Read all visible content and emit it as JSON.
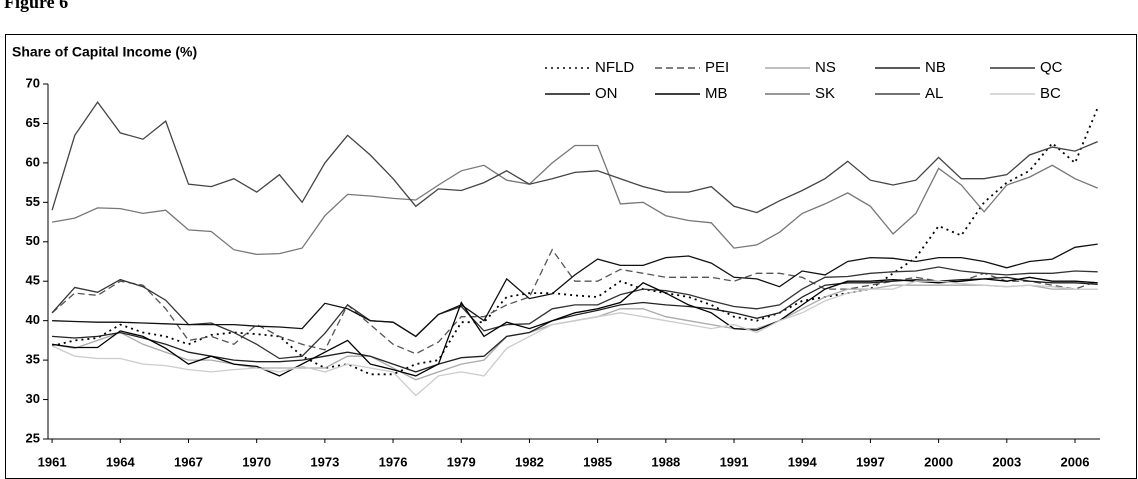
{
  "chart_data": {
    "type": "line",
    "title": "Figure 6",
    "y_label": "Share of Capital Income (%)",
    "x": [
      1961,
      1962,
      1963,
      1964,
      1965,
      1966,
      1967,
      1968,
      1969,
      1970,
      1971,
      1972,
      1973,
      1974,
      1975,
      1976,
      1977,
      1978,
      1979,
      1980,
      1981,
      1982,
      1983,
      1984,
      1985,
      1986,
      1987,
      1988,
      1989,
      1990,
      1991,
      1992,
      1993,
      1994,
      1995,
      1996,
      1997,
      1998,
      1999,
      2000,
      2001,
      2002,
      2003,
      2004,
      2005,
      2006,
      2007
    ],
    "xlim": [
      1960.82,
      2007.1
    ],
    "xticks": [
      1961,
      1964,
      1967,
      1970,
      1973,
      1976,
      1979,
      1982,
      1985,
      1988,
      1991,
      1994,
      1997,
      2000,
      2003,
      2006
    ],
    "ylim": [
      25,
      70
    ],
    "yticks": [
      25,
      30,
      35,
      40,
      45,
      50,
      55,
      60,
      65,
      70
    ],
    "grid": false,
    "legend": "top-right",
    "series": [
      {
        "name": "NFLD",
        "color": "#000000",
        "dash": "dotted",
        "values": [
          36.8,
          37.5,
          37.8,
          39.5,
          38.5,
          38,
          37,
          38.2,
          38.5,
          38.3,
          38,
          35.5,
          34,
          34.5,
          33.2,
          33.2,
          34.5,
          35,
          39.8,
          39.8,
          43,
          43.5,
          43.5,
          43.2,
          43,
          45,
          44,
          43.5,
          43,
          42,
          40.5,
          40,
          41,
          42.5,
          43,
          43.5,
          44,
          46,
          48,
          52,
          50.8,
          55,
          57.5,
          59,
          62.5,
          60,
          67
        ]
      },
      {
        "name": "PEI",
        "color": "#555555",
        "dash": "dashed",
        "values": [
          41,
          43.5,
          43.2,
          45,
          44.5,
          41.5,
          37.5,
          38,
          37,
          39.5,
          38,
          37,
          36.3,
          42,
          39.5,
          37,
          35.8,
          37.3,
          40.5,
          40.5,
          42,
          43,
          49,
          45,
          45,
          46.5,
          46,
          45.5,
          45.5,
          45.5,
          45,
          46,
          46,
          45.5,
          44,
          44,
          44.5,
          45,
          45.5,
          45,
          45,
          46,
          45,
          45,
          44.5,
          44,
          45
        ]
      },
      {
        "name": "NS",
        "color": "#aaaaaa",
        "dash": "solid",
        "values": [
          37,
          36.5,
          37.5,
          38.5,
          37,
          36,
          35,
          35,
          34.5,
          34,
          34,
          34,
          34,
          35.5,
          35.5,
          34,
          32.5,
          33.5,
          34.5,
          35,
          38,
          38.5,
          39.5,
          40,
          40.5,
          41.5,
          41.5,
          40.5,
          40,
          39.5,
          39,
          39,
          40,
          41.5,
          43,
          44,
          44,
          44.5,
          44.5,
          44.5,
          44.5,
          44.5,
          44.3,
          44.5,
          44,
          44,
          44
        ]
      },
      {
        "name": "NB",
        "color": "#222222",
        "dash": "solid",
        "values": [
          38,
          37.8,
          38,
          38.5,
          37.8,
          37,
          36,
          35.5,
          35,
          34.8,
          34.8,
          35,
          35.5,
          36,
          35.5,
          34.5,
          33.5,
          34.5,
          35.3,
          35.5,
          38,
          38.5,
          40,
          40.7,
          41.3,
          42,
          42.3,
          42,
          41.8,
          41.5,
          41,
          40.3,
          41,
          43,
          44.5,
          44.8,
          44.8,
          45,
          45.2,
          45,
          45.2,
          45.3,
          45.5,
          45,
          44.8,
          44.8,
          44.6
        ]
      },
      {
        "name": "QC",
        "color": "#333333",
        "dash": "solid",
        "values": [
          41,
          44.2,
          43.6,
          45.2,
          44.3,
          42.6,
          39.5,
          39.7,
          38.5,
          37,
          35.2,
          35.5,
          38.4,
          42,
          40,
          39.8,
          38,
          40.8,
          41.8,
          38.7,
          39.5,
          39.6,
          41.5,
          42,
          42,
          43.3,
          44,
          43.8,
          43.3,
          42.5,
          41.8,
          41.5,
          42,
          44,
          45.5,
          45.6,
          46,
          46.2,
          46.3,
          46.8,
          46.3,
          46,
          45.8,
          46,
          46,
          46.3,
          46.2
        ]
      },
      {
        "name": "ON",
        "color": "#111111",
        "dash": "solid",
        "values": [
          40,
          39.9,
          39.8,
          39.8,
          39.7,
          39.6,
          39.5,
          39.5,
          39.5,
          39.3,
          39.2,
          39,
          42.2,
          41.5,
          40,
          39.8,
          38,
          40.8,
          42,
          40,
          45.3,
          42.8,
          43.4,
          45.8,
          47.8,
          47,
          47,
          48,
          48.2,
          47.3,
          45.5,
          45.3,
          44.3,
          46.3,
          45.8,
          47.5,
          48,
          47.9,
          47.5,
          48,
          48,
          47.5,
          46.7,
          47.5,
          47.8,
          49.3,
          49.7
        ]
      },
      {
        "name": "MB",
        "color": "#000000",
        "dash": "solid",
        "values": [
          37,
          36.6,
          36.6,
          38.7,
          38,
          36.5,
          34.5,
          35.5,
          34.5,
          34.2,
          33,
          34.5,
          36,
          37.5,
          34.5,
          33.8,
          33,
          34.5,
          42.3,
          38,
          39.8,
          39,
          40,
          41,
          41.5,
          42.3,
          44.8,
          43.5,
          42,
          41,
          39,
          38.8,
          40,
          42,
          44,
          45,
          45,
          45.2,
          45,
          44.8,
          45,
          45.3,
          45,
          45.5,
          45,
          45,
          44.8
        ]
      },
      {
        "name": "SK",
        "color": "#777777",
        "dash": "solid",
        "values": [
          52.5,
          53,
          54.3,
          54.2,
          53.6,
          54,
          51.5,
          51.3,
          49,
          48.4,
          48.5,
          49.2,
          53.3,
          56,
          55.8,
          55.5,
          55.3,
          57.2,
          59,
          59.7,
          57.8,
          57.3,
          60,
          62.2,
          62.2,
          54.8,
          55,
          53.3,
          52.7,
          52.4,
          49.2,
          49.6,
          51.2,
          53.6,
          54.8,
          56.2,
          54.5,
          51,
          53.6,
          59.3,
          57.2,
          53.8,
          57.2,
          58.2,
          59.7,
          58,
          56.8
        ]
      },
      {
        "name": "AL",
        "color": "#444444",
        "dash": "solid",
        "values": [
          54,
          63.5,
          67.7,
          63.8,
          63,
          65.3,
          57.3,
          57,
          58,
          56.3,
          58.5,
          55,
          60,
          63.5,
          61,
          58,
          54.5,
          56.7,
          56.5,
          57.5,
          59,
          57.3,
          58,
          58.8,
          59,
          58,
          57,
          56.3,
          56.3,
          57,
          54.5,
          53.7,
          55.2,
          56.5,
          58,
          60.2,
          57.8,
          57.2,
          57.8,
          60.7,
          58,
          58,
          58.5,
          61,
          62,
          61.5,
          62.7
        ]
      },
      {
        "name": "BC",
        "color": "#cccccc",
        "dash": "solid",
        "values": [
          36.8,
          35.5,
          35.2,
          35.2,
          34.5,
          34.3,
          33.8,
          33.5,
          33.8,
          34,
          33.5,
          34.2,
          33.5,
          34.5,
          34,
          33.5,
          30.5,
          33,
          33.5,
          33,
          36.5,
          38,
          39.5,
          40,
          40.5,
          41,
          40.5,
          40,
          39.5,
          39,
          39.5,
          38.5,
          40,
          41,
          42.5,
          43.5,
          44,
          44,
          45,
          45,
          44.7,
          44.5,
          44.3,
          44.5,
          44.3,
          44,
          44
        ]
      }
    ]
  }
}
